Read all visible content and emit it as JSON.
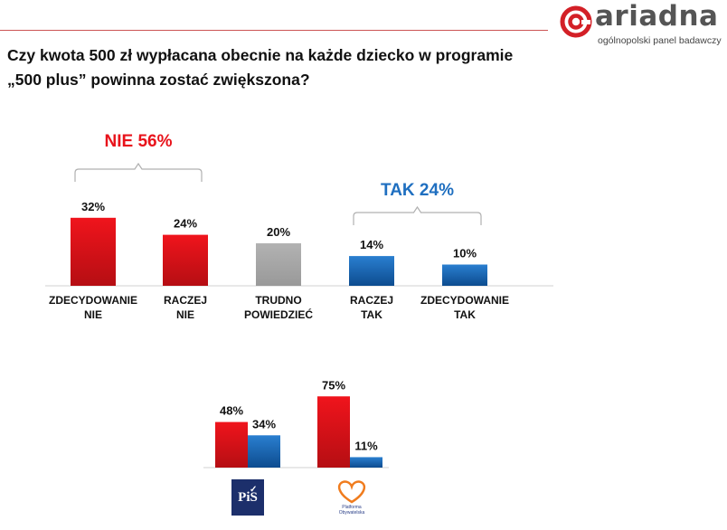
{
  "logo": {
    "word": "ariadna",
    "subtitle": "ogólnopolski panel badawczy"
  },
  "question": "Czy kwota 500 zł wypłacana obecnie na każde dziecko w programie „500 plus” powinna zostać zwiększona?",
  "colors": {
    "red": "#e8131b",
    "red_dark": "#b80f14",
    "blue": "#1f6fc0",
    "blue_dark": "#0e4f93",
    "gray": "#a6a6a6",
    "nie_label": "#e8131b",
    "tak_label": "#1f6fc0"
  },
  "chart_data": [
    {
      "type": "bar",
      "categories": [
        [
          "ZDECYDOWANIE",
          "NIE"
        ],
        [
          "RACZEJ",
          "NIE"
        ],
        [
          "TRUDNO",
          "POWIEDZIEĆ"
        ],
        [
          "RACZEJ",
          "TAK"
        ],
        [
          "ZDECYDOWANIE",
          "TAK"
        ]
      ],
      "values": [
        32,
        24,
        20,
        14,
        10
      ],
      "value_labels": [
        "32%",
        "24%",
        "20%",
        "14%",
        "10%"
      ],
      "bar_colors": [
        "red",
        "red",
        "gray",
        "blue",
        "blue"
      ],
      "annotations": [
        {
          "text": "NIE 56%",
          "spans": [
            0,
            1
          ],
          "color": "red"
        },
        {
          "text": "TAK 24%",
          "spans": [
            3,
            4
          ],
          "color": "blue"
        }
      ]
    },
    {
      "type": "bar",
      "categories": [
        "PiS",
        "Platforma Obywatelska"
      ],
      "series": [
        {
          "values": [
            48,
            75
          ],
          "value_labels": [
            "48%",
            "75%"
          ],
          "color": "red"
        },
        {
          "values": [
            34,
            11
          ],
          "value_labels": [
            "34%",
            "11%"
          ],
          "color": "blue"
        }
      ],
      "category_logos": [
        "PiS",
        "Platforma Obywatelska"
      ]
    }
  ],
  "party_logos": {
    "pis": "PiS",
    "po": [
      "Platforma",
      "Obywatelska"
    ]
  }
}
